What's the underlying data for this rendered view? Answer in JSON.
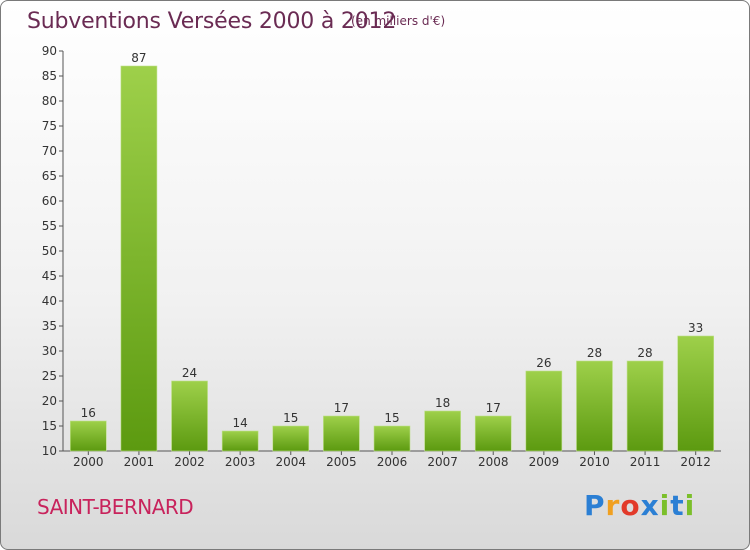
{
  "title": "Subventions Versées 2000 à 2012",
  "unit_note": "(en milliers d'€)",
  "commune": "SAINT-BERNARD",
  "logo": {
    "letters": [
      "P",
      "r",
      "o",
      "x",
      "i",
      "t",
      "i"
    ],
    "colors": [
      "#2b7fd4",
      "#f0a020",
      "#e23a2a",
      "#2b7fd4",
      "#7bbf2a",
      "#2b7fd4",
      "#7bbf2a"
    ]
  },
  "colors": {
    "bar_top": "#9ed04a",
    "bar_bottom": "#5c9a10",
    "title": "#6a2b53",
    "commune": "#c8235c"
  },
  "chart_data": {
    "type": "bar",
    "title": "Subventions Versées 2000 à 2012",
    "subtitle": "(en milliers d'€)",
    "categories": [
      "2000",
      "2001",
      "2002",
      "2003",
      "2004",
      "2005",
      "2006",
      "2007",
      "2008",
      "2009",
      "2010",
      "2011",
      "2012"
    ],
    "values": [
      16,
      87,
      24,
      14,
      15,
      17,
      15,
      18,
      17,
      26,
      28,
      28,
      33
    ],
    "ylim": [
      10,
      90
    ],
    "yticks": [
      10,
      15,
      20,
      25,
      30,
      35,
      40,
      45,
      50,
      55,
      60,
      65,
      70,
      75,
      80,
      85,
      90
    ],
    "grid": false,
    "xlabel": "",
    "ylabel": ""
  }
}
